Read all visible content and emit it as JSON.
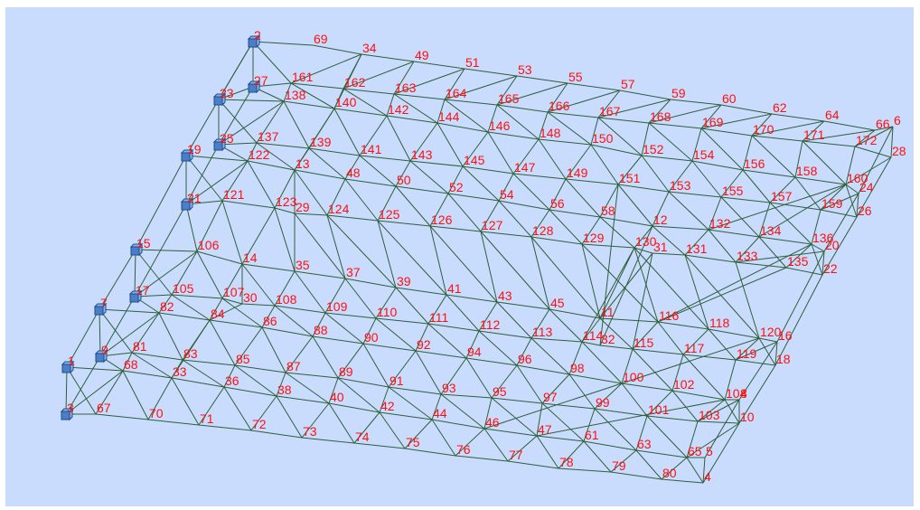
{
  "background_color": "#c9dcfd",
  "member_color": "#2f5f3a",
  "label_color": "#ff1010",
  "support_color": "#4a7ec8",
  "support_icon": "support-cube-icon",
  "node_labels": [
    "1",
    "2",
    "3",
    "4",
    "5",
    "6",
    "7",
    "8",
    "9",
    "10",
    "11",
    "12",
    "13",
    "14",
    "15",
    "16",
    "17",
    "18",
    "19",
    "20",
    "21",
    "22",
    "23",
    "24",
    "25",
    "26",
    "27",
    "28",
    "29",
    "30",
    "31",
    "32",
    "33",
    "34",
    "35",
    "36",
    "37",
    "38",
    "39",
    "40",
    "41",
    "42",
    "43",
    "44",
    "45",
    "46",
    "47",
    "48",
    "49",
    "50",
    "51",
    "52",
    "53",
    "54",
    "55",
    "56",
    "57",
    "58",
    "59",
    "60",
    "61",
    "62",
    "63",
    "64",
    "65",
    "66",
    "67",
    "68",
    "69",
    "70",
    "71",
    "72",
    "73",
    "74",
    "75",
    "76",
    "77",
    "78",
    "79",
    "80",
    "81",
    "82",
    "83",
    "84",
    "85",
    "86",
    "87",
    "88",
    "89",
    "90",
    "91",
    "92",
    "93",
    "94",
    "95",
    "96",
    "97",
    "98",
    "99",
    "100",
    "101",
    "102",
    "103",
    "104",
    "105",
    "106",
    "107",
    "108",
    "109",
    "110",
    "111",
    "112",
    "113",
    "114",
    "115",
    "116",
    "117",
    "118",
    "119",
    "120",
    "121",
    "122",
    "123",
    "124",
    "125",
    "126",
    "127",
    "128",
    "129",
    "130",
    "131",
    "132",
    "133",
    "134",
    "135",
    "136",
    "137",
    "138",
    "139",
    "140",
    "141",
    "142",
    "143",
    "144",
    "145",
    "146",
    "147",
    "148",
    "149",
    "150",
    "151",
    "152",
    "153",
    "154",
    "155",
    "156",
    "157",
    "158",
    "159",
    "160",
    "161",
    "162",
    "163",
    "164",
    "165",
    "166",
    "167",
    "168",
    "169",
    "170",
    "171",
    "172"
  ]
}
